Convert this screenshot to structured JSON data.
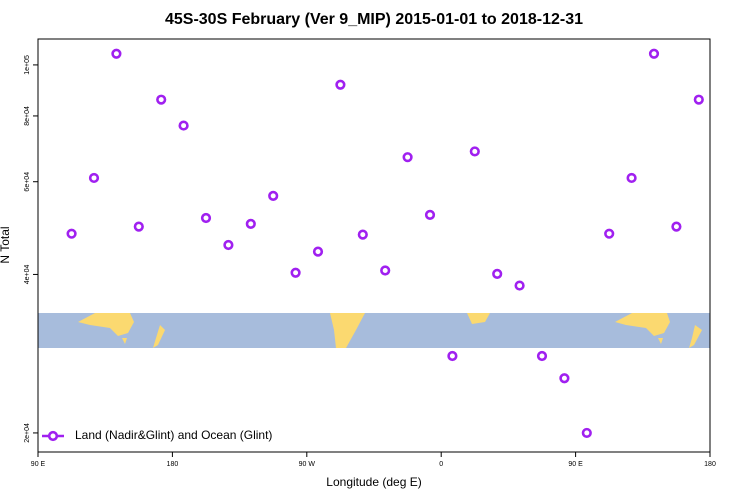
{
  "chart_data": {
    "type": "scatter",
    "title": "45S-30S February (Ver 9_MIP)   2015-01-01 to 2018-12-31",
    "xlabel": "Longitude (deg E)",
    "ylabel": "N Total",
    "x": [
      112.5,
      127.5,
      142.5,
      157.5,
      172.5,
      187.5,
      202.5,
      217.5,
      232.5,
      247.5,
      262.5,
      277.5,
      292.5,
      307.5,
      322.5,
      337.5,
      352.5,
      367.5,
      382.5,
      397.5,
      412.5,
      427.5,
      442.5,
      457.5,
      472.5,
      487.5,
      502.5,
      517.5,
      532.5
    ],
    "series": [
      {
        "name": "Land (Nadir&Glint) and Ocean (Glint)",
        "color": "#a020f0",
        "values": [
          47800,
          61000,
          105000,
          49300,
          85900,
          76700,
          51200,
          45500,
          49900,
          56400,
          40300,
          44200,
          91700,
          47600,
          40700,
          66800,
          51900,
          28000,
          68500,
          40100,
          38100,
          28000,
          25400,
          20000,
          47800,
          61000,
          105000,
          49300,
          85900
        ]
      }
    ],
    "xlim": [
      90,
      540
    ],
    "xticks": [
      {
        "value": 90,
        "label": "90 E"
      },
      180,
      {
        "value": 270,
        "label": "90 W"
      },
      {
        "value": 360,
        "label": "0"
      },
      {
        "value": 450,
        "label": "90 E"
      },
      {
        "value": 540,
        "label": "180"
      }
    ],
    "ylim": [
      18400,
      112000
    ],
    "ylog": true,
    "yticks": [
      {
        "value": 20000,
        "label": "2e+04"
      },
      {
        "value": 40000,
        "label": "4e+04"
      },
      {
        "value": 60000,
        "label": "6e+04"
      },
      {
        "value": 80000,
        "label": "8e+04"
      },
      {
        "value": 100000,
        "label": "1e+05"
      }
    ],
    "legend": "bottom-left"
  }
}
